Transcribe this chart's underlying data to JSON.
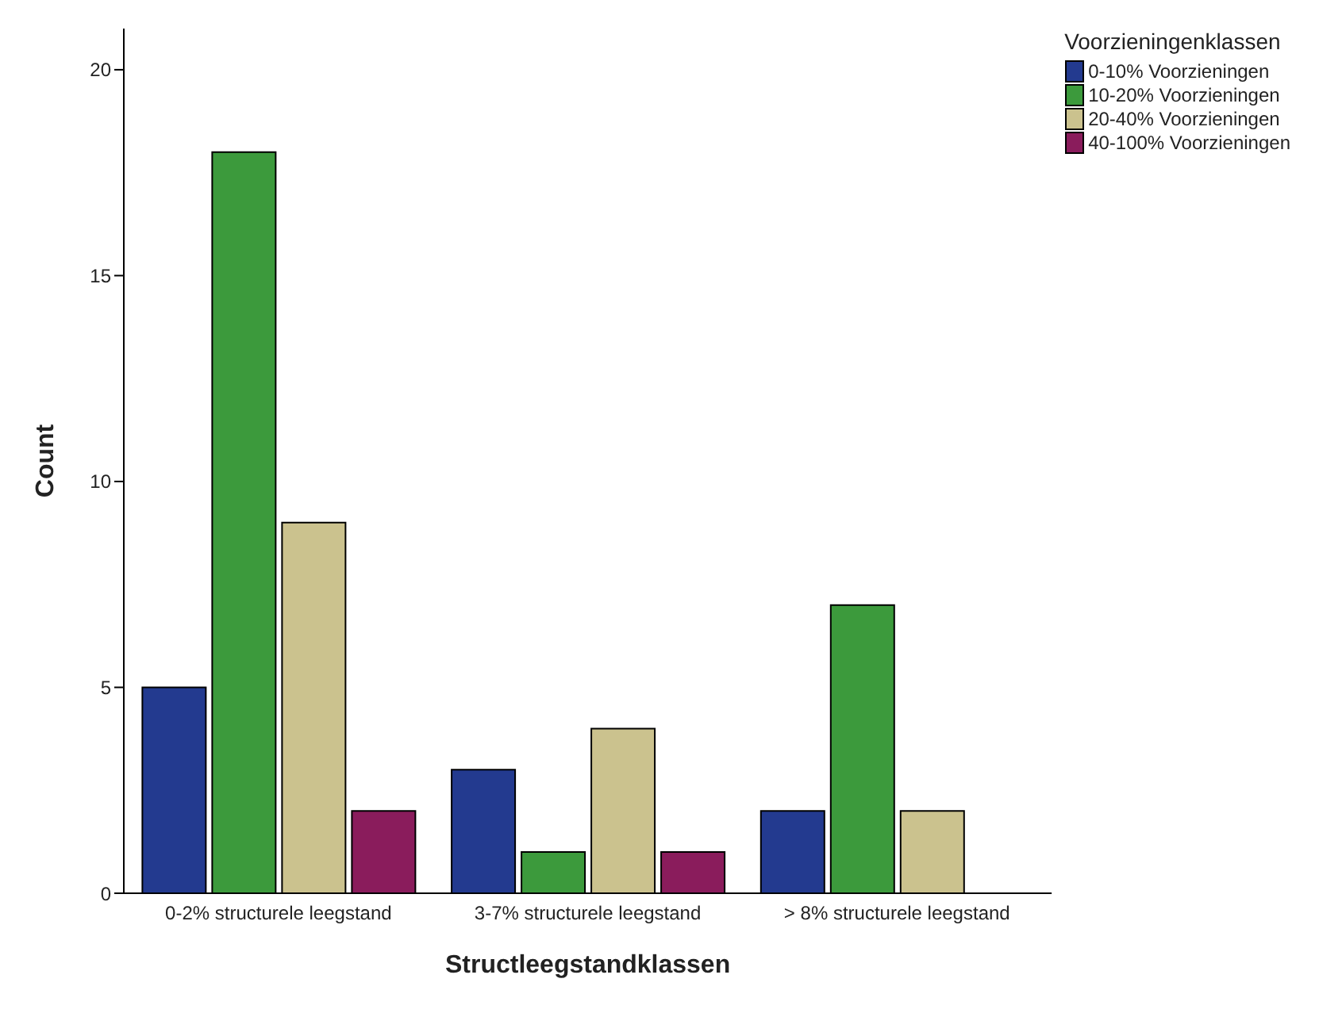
{
  "chart_data": {
    "type": "bar",
    "xlabel": "Structleegstandklassen",
    "ylabel": "Count",
    "legend_title": "Voorzieningenklassen",
    "legend": "top right",
    "categories": [
      "0-2% structurele leegstand",
      "3-7% structurele leegstand",
      "> 8% structurele leegstand"
    ],
    "series": [
      {
        "name": "0-10% Voorzieningen",
        "color": "#233a8f",
        "values": [
          5,
          3,
          2
        ]
      },
      {
        "name": "10-20% Voorzieningen",
        "color": "#3c9a3c",
        "values": [
          18,
          1,
          7
        ]
      },
      {
        "name": "20-40% Voorzieningen",
        "color": "#cbc28e",
        "values": [
          9,
          4,
          2
        ]
      },
      {
        "name": "40-100% Voorzieningen",
        "color": "#8a1c5c",
        "values": [
          2,
          1,
          0
        ]
      }
    ],
    "ylim": [
      0,
      21
    ],
    "yticks": [
      0,
      5,
      10,
      15,
      20
    ]
  }
}
